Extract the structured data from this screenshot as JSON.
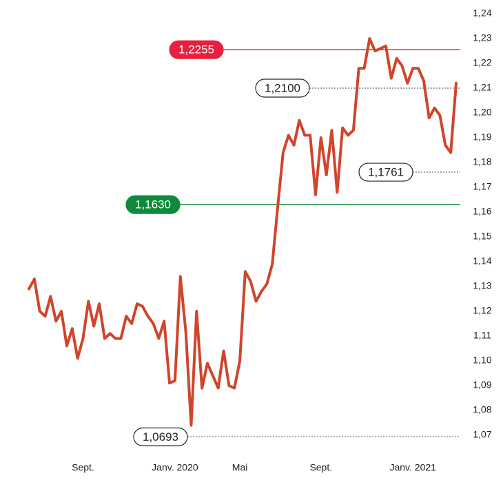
{
  "chart_data": {
    "type": "line",
    "categories": [
      null,
      null,
      null,
      null,
      null,
      null,
      null,
      null,
      null,
      null,
      "Sept.",
      null,
      null,
      null,
      null,
      null,
      null,
      null,
      null,
      null,
      null,
      null,
      null,
      null,
      null,
      null,
      null,
      "Janv. 2020",
      null,
      null,
      null,
      null,
      null,
      null,
      null,
      null,
      null,
      null,
      null,
      "Mai",
      null,
      null,
      null,
      null,
      null,
      null,
      null,
      null,
      null,
      null,
      null,
      null,
      null,
      null,
      "Sept.",
      null,
      null,
      null,
      null,
      null,
      null,
      null,
      null,
      null,
      null,
      null,
      null,
      null,
      null,
      null,
      null,
      "Janv. 2021",
      null,
      null,
      null,
      null,
      null,
      null,
      null,
      null
    ],
    "series": [
      {
        "color": "#d0452c",
        "values": [
          1.129,
          1.133,
          1.12,
          1.118,
          1.126,
          1.116,
          1.12,
          1.106,
          1.113,
          1.101,
          1.109,
          1.124,
          1.114,
          1.123,
          1.109,
          1.111,
          1.109,
          1.109,
          1.118,
          1.115,
          1.123,
          1.122,
          1.118,
          1.115,
          1.109,
          1.116,
          1.091,
          1.092,
          1.134,
          1.112,
          1.074,
          1.12,
          1.089,
          1.099,
          1.094,
          1.089,
          1.104,
          1.09,
          1.089,
          1.1,
          1.136,
          1.132,
          1.124,
          1.128,
          1.131,
          1.139,
          1.162,
          1.184,
          1.191,
          1.187,
          1.197,
          1.191,
          1.191,
          1.167,
          1.19,
          1.175,
          1.193,
          1.168,
          1.194,
          1.191,
          1.193,
          1.218,
          1.218,
          1.23,
          1.225,
          1.226,
          1.227,
          1.214,
          1.222,
          1.219,
          1.212,
          1.218,
          1.218,
          1.213,
          1.198,
          1.202,
          1.199,
          1.187,
          1.184,
          1.212
        ]
      }
    ],
    "ylim": [
      1.07,
      1.24
    ],
    "yticks": [
      {
        "value": 1.07,
        "label": "1,07"
      },
      {
        "value": 1.08,
        "label": "1,08"
      },
      {
        "value": 1.09,
        "label": "1,09"
      },
      {
        "value": 1.1,
        "label": "1,10"
      },
      {
        "value": 1.11,
        "label": "1,11"
      },
      {
        "value": 1.12,
        "label": "1,12"
      },
      {
        "value": 1.13,
        "label": "1,13"
      },
      {
        "value": 1.14,
        "label": "1,14"
      },
      {
        "value": 1.15,
        "label": "1,15"
      },
      {
        "value": 1.16,
        "label": "1,16"
      },
      {
        "value": 1.17,
        "label": "1,17"
      },
      {
        "value": 1.18,
        "label": "1,18"
      },
      {
        "value": 1.19,
        "label": "1,19"
      },
      {
        "value": 1.2,
        "label": "1,20"
      },
      {
        "value": 1.21,
        "label": "1,21"
      },
      {
        "value": 1.22,
        "label": "1,22"
      },
      {
        "value": 1.23,
        "label": "1,23"
      },
      {
        "value": 1.24,
        "label": "1,24"
      }
    ],
    "annotations": [
      {
        "value": 1.2255,
        "label": "1,2255",
        "color": "#e8203f",
        "style": "solid"
      },
      {
        "value": 1.21,
        "label": "1,2100",
        "color": "#444444",
        "style": "dotted"
      },
      {
        "value": 1.1761,
        "label": "1,1761",
        "color": "#444444",
        "style": "dotted"
      },
      {
        "value": 1.163,
        "label": "1,1630",
        "color": "#0e8a3a",
        "style": "solid"
      },
      {
        "value": 1.0693,
        "label": "1,0693",
        "color": "#444444",
        "style": "dotted"
      }
    ]
  }
}
